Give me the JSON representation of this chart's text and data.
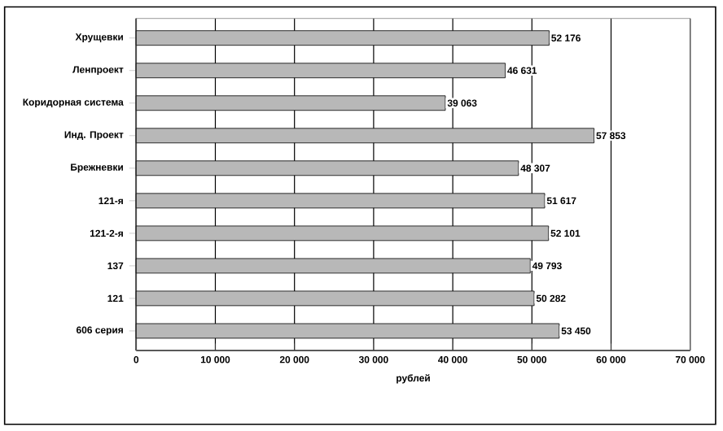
{
  "chart_data": {
    "type": "bar",
    "orientation": "horizontal",
    "xlabel": "рублей",
    "categories": [
      "Хрущевки",
      "Ленпроект",
      "Коридорная система",
      "Инд. Проект",
      "Брежневки",
      "121-я",
      "121-2-я",
      "137",
      "121",
      "606 серия"
    ],
    "values": [
      52176,
      46631,
      39063,
      57853,
      48307,
      51617,
      52101,
      49793,
      50282,
      53450
    ],
    "value_labels": [
      "52 176",
      "46 631",
      "39 063",
      "57 853",
      "48 307",
      "51 617",
      "52 101",
      "49 793",
      "50 282",
      "53 450"
    ],
    "color": "#b8b8b8",
    "xlim": [
      0,
      70000
    ],
    "xticks": [
      0,
      {
        "value": 10000,
        "label": "10 000"
      },
      {
        "value": 20000,
        "label": "20 000"
      },
      {
        "value": 30000,
        "label": "30 000"
      },
      {
        "value": 40000,
        "label": "40 000"
      },
      {
        "value": 50000,
        "label": "50 000"
      },
      {
        "value": 60000,
        "label": "60 000"
      },
      {
        "value": 70000,
        "label": "70 000"
      }
    ],
    "grid": "x"
  }
}
